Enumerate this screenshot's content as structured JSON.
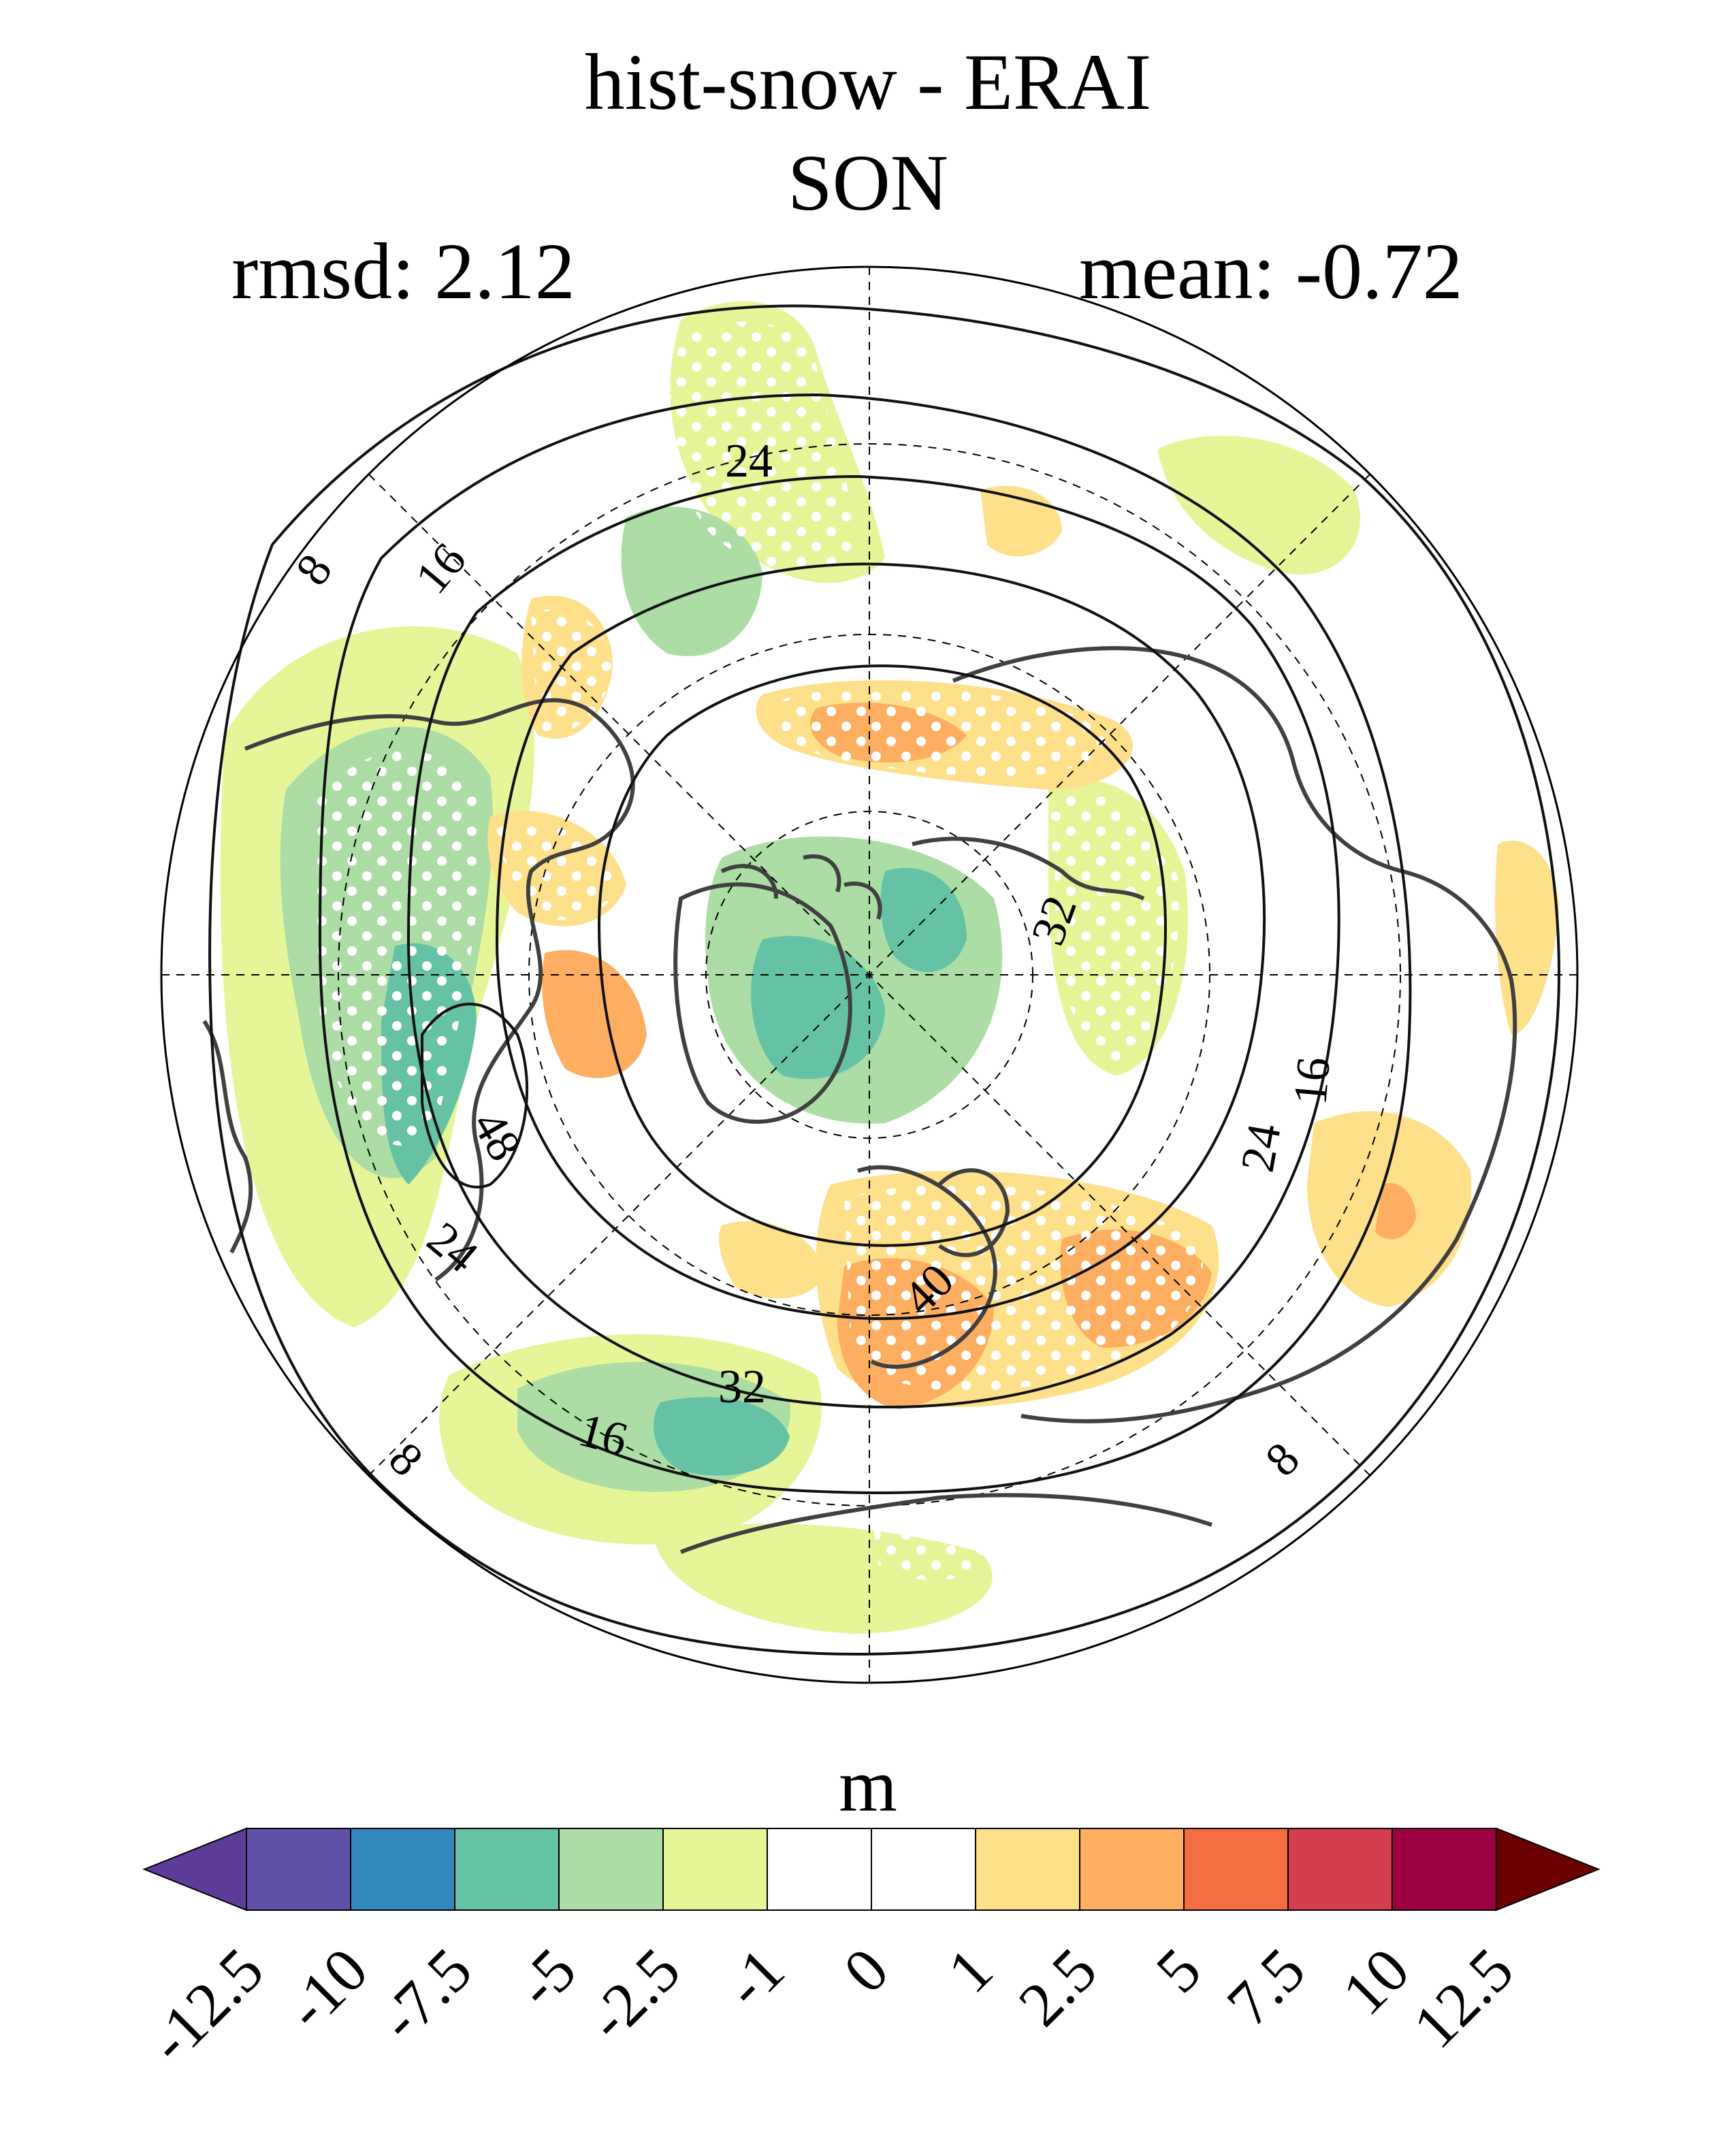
{
  "title": {
    "line1": "hist-snow - ERAI",
    "line2": "SON"
  },
  "stats": {
    "rmsd": "rmsd: 2.12",
    "mean": "mean: -0.72"
  },
  "colorbar": {
    "unit": "m",
    "ticks": [
      "-12.5",
      "-10",
      "-7.5",
      "-5",
      "-2.5",
      "-1",
      "0",
      "1",
      "2.5",
      "5",
      "7.5",
      "10",
      "12.5"
    ],
    "colors": [
      "#5e3c99",
      "#6050a8",
      "#3288bd",
      "#66c2a5",
      "#abdda4",
      "#e6f598",
      "#ffffff",
      "#ffffff",
      "#fee08b",
      "#fdae61",
      "#f46d43",
      "#d53e4f",
      "#9e0142",
      "#6b0000"
    ]
  },
  "contours": {
    "labels": [
      "8",
      "16",
      "24",
      "32",
      "40",
      "48"
    ]
  },
  "map": {
    "projection": "north-polar-stereographic",
    "colors": {
      "light_green": "#e6f598",
      "green": "#abdda4",
      "teal": "#66c2a5",
      "light_orange": "#fee08b",
      "orange": "#fdae61",
      "dark_orange": "#f46d43"
    }
  }
}
